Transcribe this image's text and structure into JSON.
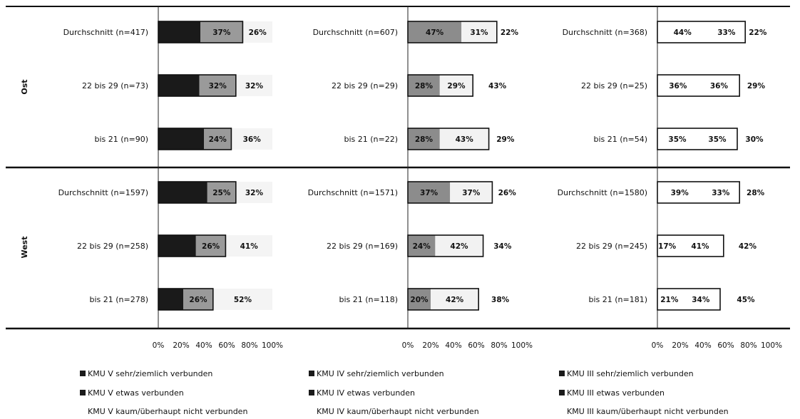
{
  "chart_data": {
    "type": "bar",
    "stacked": true,
    "orientation": "horizontal",
    "regions": [
      "Ost",
      "West"
    ],
    "x_ticks": [
      "0%",
      "20%",
      "40%",
      "60%",
      "80%",
      "100%"
    ],
    "xlim": [
      0,
      100
    ],
    "panels": [
      {
        "id": "KMU V",
        "colors": [
          "#1a1a1a",
          "#9a9a9a",
          "#f4f4f4"
        ],
        "rows": [
          {
            "region": "Ost",
            "label": "Durchschnitt (n=417)",
            "values": [
              37,
              37,
              26
            ],
            "labels": [
              "",
              "37%",
              "26%"
            ]
          },
          {
            "region": "Ost",
            "label": "22 bis 29 (n=73)",
            "values": [
              36,
              32,
              32
            ],
            "labels": [
              "",
              "32%",
              "32%"
            ]
          },
          {
            "region": "Ost",
            "label": "bis 21 (n=90)",
            "values": [
              40,
              24,
              36
            ],
            "labels": [
              "",
              "24%",
              "36%"
            ]
          },
          {
            "region": "West",
            "label": "Durchschnitt (n=1597)",
            "values": [
              43,
              25,
              32
            ],
            "labels": [
              "",
              "25%",
              "32%"
            ]
          },
          {
            "region": "West",
            "label": "22 bis 29 (n=258)",
            "values": [
              33,
              26,
              41
            ],
            "labels": [
              "",
              "26%",
              "41%"
            ]
          },
          {
            "region": "West",
            "label": "bis 21 (n=278)",
            "values": [
              22,
              26,
              52
            ],
            "labels": [
              "",
              "26%",
              "52%"
            ]
          }
        ]
      },
      {
        "id": "KMU IV",
        "colors": [
          "#8c8c8c",
          "#f2f2f2",
          "#ffffff"
        ],
        "rows": [
          {
            "region": "Ost",
            "label": "Durchschnitt (n=607)",
            "values": [
              47,
              31,
              22
            ],
            "labels": [
              "47%",
              "31%",
              "22%"
            ]
          },
          {
            "region": "Ost",
            "label": "22 bis 29 (n=29)",
            "values": [
              28,
              29,
              43
            ],
            "labels": [
              "28%",
              "29%",
              "43%"
            ]
          },
          {
            "region": "Ost",
            "label": "bis 21 (n=22)",
            "values": [
              28,
              43,
              29
            ],
            "labels": [
              "28%",
              "43%",
              "29%"
            ]
          },
          {
            "region": "West",
            "label": "Durchschnitt (n=1571)",
            "values": [
              37,
              37,
              26
            ],
            "labels": [
              "37%",
              "37%",
              "26%"
            ]
          },
          {
            "region": "West",
            "label": "22 bis 29 (n=169)",
            "values": [
              24,
              42,
              34
            ],
            "labels": [
              "24%",
              "42%",
              "34%"
            ]
          },
          {
            "region": "West",
            "label": "bis 21 (n=118)",
            "values": [
              20,
              42,
              38
            ],
            "labels": [
              "20%",
              "42%",
              "38%"
            ]
          }
        ]
      },
      {
        "id": "KMU III",
        "colors": [
          "#ffffff",
          "#ffffff",
          "#ffffff"
        ],
        "rows": [
          {
            "region": "Ost",
            "label": "Durchschnitt (n=368)",
            "values": [
              44,
              33,
              22
            ],
            "labels": [
              "44%",
              "33%",
              "22%"
            ]
          },
          {
            "region": "Ost",
            "label": "22 bis 29 (n=25)",
            "values": [
              36,
              36,
              29
            ],
            "labels": [
              "36%",
              "36%",
              "29%"
            ]
          },
          {
            "region": "Ost",
            "label": "bis 21 (n=54)",
            "values": [
              35,
              35,
              30
            ],
            "labels": [
              "35%",
              "35%",
              "30%"
            ]
          },
          {
            "region": "West",
            "label": "Durchschnitt (n=1580)",
            "values": [
              39,
              33,
              28
            ],
            "labels": [
              "39%",
              "33%",
              "28%"
            ]
          },
          {
            "region": "West",
            "label": "22 bis 29 (n=245)",
            "values": [
              17,
              41,
              42
            ],
            "labels": [
              "17%",
              "41%",
              "42%"
            ]
          },
          {
            "region": "West",
            "label": "bis 21 (n=181)",
            "values": [
              21,
              34,
              45
            ],
            "labels": [
              "21%",
              "34%",
              "45%"
            ]
          }
        ]
      }
    ],
    "legend": [
      [
        "KMU V sehr/ziemlich verbunden",
        "KMU V etwas verbunden",
        "KMU V kaum/überhaupt nicht verbunden"
      ],
      [
        "KMU IV sehr/ziemlich verbunden",
        "KMU IV etwas verbunden",
        "KMU IV kaum/überhaupt nicht verbunden"
      ],
      [
        "KMU III sehr/ziemlich verbunden",
        "KMU III etwas verbunden",
        "KMU III kaum/überhaupt nicht verbunden"
      ]
    ],
    "legend_colors": [
      "#1a1a1a",
      "#1a1a1a",
      "#bfbfbf"
    ]
  }
}
